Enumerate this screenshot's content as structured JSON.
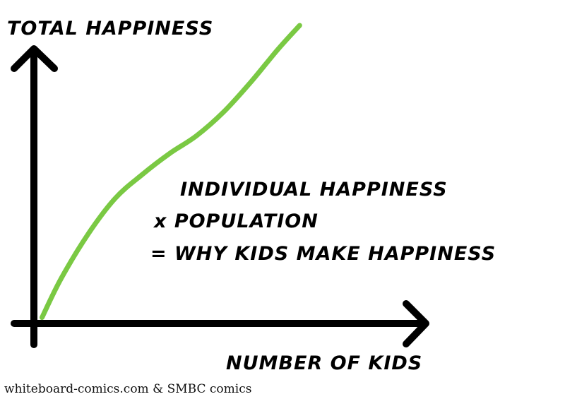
{
  "chart_data": {
    "type": "line",
    "ylabel": "TOTAL HAPPINESS",
    "xlabel": "NUMBER OF KIDS",
    "annotation": [
      "INDIVIDUAL HAPPINESS",
      "x POPULATION",
      "= WHY KIDS MAKE HAPPINESS"
    ],
    "series": [
      {
        "values": [
          [
            0.03,
            0.02
          ],
          [
            0.1,
            0.15
          ],
          [
            0.2,
            0.3
          ],
          [
            0.3,
            0.42
          ],
          [
            0.4,
            0.5
          ],
          [
            0.5,
            0.57
          ],
          [
            0.6,
            0.63
          ],
          [
            0.7,
            0.71
          ],
          [
            0.8,
            0.81
          ],
          [
            0.9,
            0.92
          ],
          [
            0.98,
            1.0
          ]
        ]
      }
    ],
    "line_color": "#7ac943",
    "axis_color": "#000000",
    "grid": false
  },
  "credit": "whiteboard-comics.com & SMBC comics"
}
